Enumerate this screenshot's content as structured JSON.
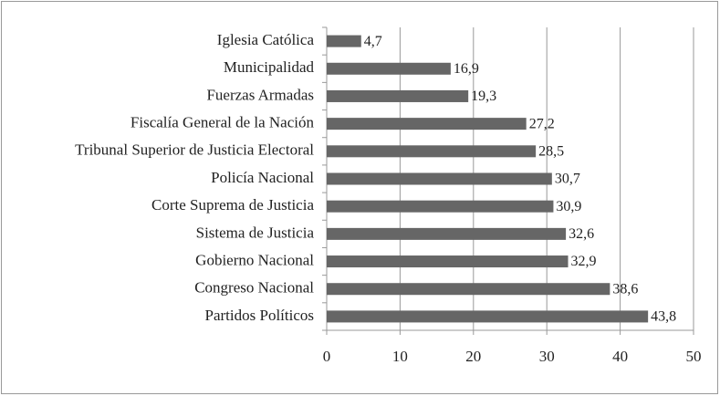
{
  "chart_data": {
    "type": "bar",
    "orientation": "horizontal",
    "categories": [
      "Iglesia Católica",
      "Municipalidad",
      "Fuerzas Armadas",
      "Fiscalía General de la Nación",
      "Tribunal Superior de Justicia Electoral",
      "Policía Nacional",
      "Corte Suprema de Justicia",
      "Sistema de Justicia",
      "Gobierno Nacional",
      "Congreso Nacional",
      "Partidos Políticos"
    ],
    "values": [
      4.7,
      16.9,
      19.3,
      27.2,
      28.5,
      30.7,
      30.9,
      32.6,
      32.9,
      38.6,
      43.8
    ],
    "value_labels": [
      "4,7",
      "16,9",
      "19,3",
      "27,2",
      "28,5",
      "30,7",
      "30,9",
      "32,6",
      "32,9",
      "38,6",
      "43,8"
    ],
    "color": "#666666",
    "xlim": [
      0,
      50
    ],
    "xticks": [
      0,
      10,
      20,
      30,
      40,
      50
    ],
    "grid": true
  }
}
